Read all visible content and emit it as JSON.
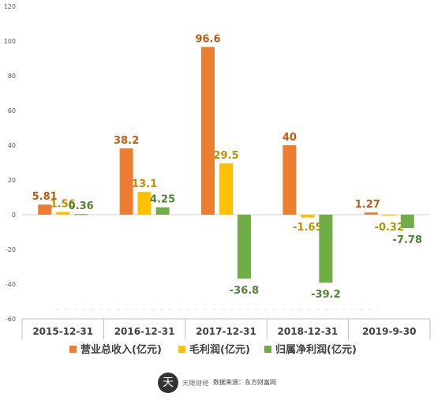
{
  "chart_data": {
    "type": "bar",
    "categories": [
      "2015-12-31",
      "2016-12-31",
      "2017-12-31",
      "2018-12-31",
      "2019-9-30"
    ],
    "series": [
      {
        "name": "营业总收入(亿元)",
        "values": [
          5.81,
          38.2,
          96.6,
          40,
          1.27
        ],
        "labels": [
          "5.81",
          "38.2",
          "96.6",
          "40",
          "1.27"
        ],
        "color": "#ED7D31",
        "label_color": "#C55A11"
      },
      {
        "name": "毛利润(亿元)",
        "values": [
          1.56,
          13.1,
          29.5,
          -1.65,
          -0.32
        ],
        "labels": [
          "1.56",
          "13.1",
          "29.5",
          "-1.65",
          "-0.32"
        ],
        "color": "#FFC000",
        "label_color": "#BF9000"
      },
      {
        "name": "归属净利润(亿元)",
        "values": [
          0.36,
          4.25,
          -36.8,
          -39.2,
          -7.78
        ],
        "labels": [
          "0.36",
          "4.25",
          "-36.8",
          "-39.2",
          "-7.78"
        ],
        "color": "#70AD47",
        "label_color": "#548235"
      }
    ],
    "ylim": [
      -60,
      120
    ],
    "yticks": [
      "-60",
      "-40",
      "-20",
      "0",
      "20",
      "40",
      "60",
      "80",
      "100",
      "120"
    ],
    "grid": false,
    "legend_position": "bottom"
  },
  "footer": {
    "logo_char": "天",
    "brand": "天眼财经",
    "source": "数据来源：东方财富网"
  }
}
